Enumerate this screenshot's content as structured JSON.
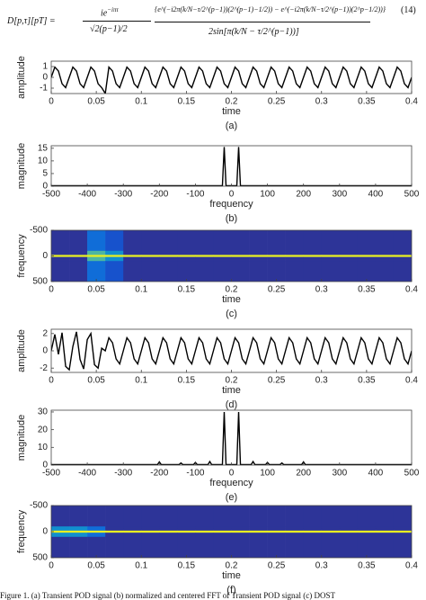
{
  "equation": {
    "lhs": "D[p,τ][pT] =",
    "num1": "ie",
    "num1_sup": "−iπτ",
    "den1": "√2(p−1)/2",
    "num2": "{e^(−i2π(k/N−τ/2^(p−1))(2^(p−1)−1/2)) − e^(−i2π(k/N−τ/2^(p−1))(2^p−1/2))}",
    "den2": "2sin[π(k/N − τ/2^(p−1))]",
    "number": "(14)"
  },
  "caption": "Figure 1. (a) Transient POD signal (b) normalized and centered FFT of Transient POD signal (c) DOST",
  "chart_data": [
    {
      "type": "line",
      "label": "(a)",
      "xlabel": "time",
      "ylabel": "amplitude",
      "color": "#000000",
      "x": [
        0,
        0.004,
        0.008,
        0.012,
        0.016,
        0.02,
        0.024,
        0.028,
        0.032,
        0.036,
        0.04,
        0.044,
        0.048,
        0.052,
        0.056,
        0.06,
        0.064,
        0.068,
        0.072,
        0.076,
        0.08,
        0.084,
        0.088,
        0.092,
        0.096,
        0.1,
        0.104,
        0.108,
        0.112,
        0.116,
        0.12,
        0.124,
        0.128,
        0.132,
        0.136,
        0.14,
        0.144,
        0.148,
        0.152,
        0.156,
        0.16,
        0.164,
        0.168,
        0.172,
        0.176,
        0.18,
        0.184,
        0.188,
        0.192,
        0.196,
        0.2,
        0.204,
        0.208,
        0.212,
        0.216,
        0.22,
        0.224,
        0.228,
        0.232,
        0.236,
        0.24,
        0.244,
        0.248,
        0.252,
        0.256,
        0.26,
        0.264,
        0.268,
        0.272,
        0.276,
        0.28,
        0.284,
        0.288,
        0.292,
        0.296,
        0.3,
        0.304,
        0.308,
        0.312,
        0.316,
        0.32,
        0.324,
        0.328,
        0.332,
        0.336,
        0.34,
        0.344,
        0.348,
        0.352,
        0.356,
        0.36,
        0.364,
        0.368,
        0.372,
        0.376,
        0.38,
        0.384,
        0.388,
        0.392,
        0.396,
        0.4
      ],
      "values": [
        0,
        0.95,
        0.59,
        -0.59,
        -0.95,
        0,
        0.95,
        0.59,
        -0.59,
        -0.95,
        0,
        0.95,
        0.59,
        -0.59,
        -0.95,
        -1.5,
        0.95,
        0.59,
        -0.59,
        -0.95,
        0,
        0.95,
        0.59,
        -0.59,
        -0.95,
        0,
        0.95,
        0.59,
        -0.59,
        -0.95,
        0,
        0.95,
        0.59,
        -0.59,
        -0.95,
        0,
        0.95,
        0.59,
        -0.59,
        -0.95,
        0,
        0.95,
        0.59,
        -0.59,
        -0.95,
        0,
        0.95,
        0.59,
        -0.59,
        -0.95,
        0,
        0.95,
        0.59,
        -0.59,
        -0.95,
        0,
        0.95,
        0.59,
        -0.59,
        -0.95,
        0,
        0.95,
        0.59,
        -0.59,
        -0.95,
        0,
        0.95,
        0.59,
        -0.59,
        -0.95,
        0,
        0.95,
        0.59,
        -0.59,
        -0.95,
        0,
        0.95,
        0.59,
        -0.59,
        -0.95,
        0,
        0.95,
        0.59,
        -0.59,
        -0.95,
        0,
        0.95,
        0.59,
        -0.59,
        -0.95,
        0,
        0.95,
        0.59,
        -0.59,
        -0.95,
        0,
        0.95,
        0.59,
        -0.59,
        -0.95,
        0
      ],
      "xlim": [
        0,
        0.4
      ],
      "xticks": [
        0,
        0.05,
        0.1,
        0.15,
        0.2,
        0.25,
        0.3,
        0.35,
        0.4
      ],
      "ylim": [
        -1.5,
        1.5
      ],
      "yticks": [
        -1,
        0,
        1
      ]
    },
    {
      "type": "line",
      "label": "(b)",
      "xlabel": "frequency",
      "ylabel": "magnitude",
      "color": "#000000",
      "x": [
        -500,
        -25,
        -20,
        -15,
        15,
        20,
        25,
        500
      ],
      "values": [
        0.2,
        0.2,
        15.5,
        0.2,
        0.2,
        15.5,
        0.2,
        0.2
      ],
      "xlim": [
        -500,
        500
      ],
      "xticks": [
        -500,
        -400,
        -300,
        -200,
        -100,
        0,
        100,
        200,
        300,
        400,
        500
      ],
      "ylim": [
        0,
        16
      ],
      "yticks": [
        0,
        5,
        10,
        15
      ]
    },
    {
      "type": "heatmap",
      "label": "(c)",
      "xlabel": "time",
      "ylabel": "frequency",
      "colormap": "parula",
      "yreverse": true,
      "xbins": [
        0,
        0.02,
        0.04,
        0.06,
        0.08,
        0.1,
        0.12,
        0.14,
        0.16,
        0.18,
        0.2,
        0.22,
        0.24,
        0.26,
        0.28,
        0.3,
        0.32,
        0.34,
        0.36,
        0.38,
        0.4
      ],
      "ybins": [
        -500,
        -100,
        -20,
        20,
        100,
        500
      ],
      "z": [
        [
          0.05,
          0.05,
          0.3,
          0.2,
          0.05,
          0.05,
          0.05,
          0.05,
          0.05,
          0.05,
          0.05,
          0.05,
          0.05,
          0.05,
          0.05,
          0.05,
          0.05,
          0.05,
          0.05,
          0.05
        ],
        [
          0.05,
          0.05,
          0.6,
          0.4,
          0.05,
          0.05,
          0.05,
          0.05,
          0.05,
          0.05,
          0.05,
          0.05,
          0.05,
          0.05,
          0.05,
          0.05,
          0.05,
          0.05,
          0.05,
          0.05
        ],
        [
          0.95,
          0.95,
          0.95,
          0.95,
          0.95,
          0.95,
          0.95,
          0.95,
          0.95,
          0.95,
          0.95,
          0.95,
          0.95,
          0.95,
          0.95,
          0.95,
          0.95,
          0.95,
          0.95,
          0.95
        ],
        [
          0.05,
          0.05,
          0.6,
          0.4,
          0.05,
          0.05,
          0.05,
          0.05,
          0.05,
          0.05,
          0.05,
          0.05,
          0.05,
          0.05,
          0.05,
          0.05,
          0.05,
          0.05,
          0.05,
          0.05
        ],
        [
          0.05,
          0.05,
          0.3,
          0.2,
          0.05,
          0.05,
          0.05,
          0.05,
          0.05,
          0.05,
          0.05,
          0.05,
          0.05,
          0.05,
          0.05,
          0.05,
          0.05,
          0.05,
          0.05,
          0.05
        ]
      ],
      "zlim": [
        0,
        1
      ],
      "xlim": [
        0,
        0.4
      ],
      "xticks": [
        0,
        0.05,
        0.1,
        0.15,
        0.2,
        0.25,
        0.3,
        0.35,
        0.4
      ],
      "ylim": [
        -500,
        500
      ],
      "yticks": [
        -500,
        0,
        500
      ]
    },
    {
      "type": "line",
      "label": "(d)",
      "xlabel": "time",
      "ylabel": "amplitude",
      "color": "#000000",
      "x": [
        0,
        0.004,
        0.008,
        0.012,
        0.016,
        0.02,
        0.024,
        0.028,
        0.032,
        0.036,
        0.04,
        0.044,
        0.048,
        0.052,
        0.056,
        0.06,
        0.064,
        0.068,
        0.072,
        0.076,
        0.08,
        0.084,
        0.088,
        0.092,
        0.096,
        0.1,
        0.104,
        0.108,
        0.112,
        0.116,
        0.12,
        0.124,
        0.128,
        0.132,
        0.136,
        0.14,
        0.144,
        0.148,
        0.152,
        0.156,
        0.16,
        0.164,
        0.168,
        0.172,
        0.176,
        0.18,
        0.184,
        0.188,
        0.192,
        0.196,
        0.2,
        0.204,
        0.208,
        0.212,
        0.216,
        0.22,
        0.224,
        0.228,
        0.232,
        0.236,
        0.24,
        0.244,
        0.248,
        0.252,
        0.256,
        0.26,
        0.264,
        0.268,
        0.272,
        0.276,
        0.28,
        0.284,
        0.288,
        0.292,
        0.296,
        0.3,
        0.304,
        0.308,
        0.312,
        0.316,
        0.32,
        0.324,
        0.328,
        0.332,
        0.336,
        0.34,
        0.344,
        0.348,
        0.352,
        0.356,
        0.36,
        0.364,
        0.368,
        0.372,
        0.376,
        0.38,
        0.384,
        0.388,
        0.392,
        0.396,
        0.4
      ],
      "values": [
        0,
        1.9,
        -0.4,
        2.1,
        -1.8,
        -2.2,
        0.5,
        2.2,
        -1.0,
        -2.1,
        1.3,
        2.0,
        -1.6,
        -2.0,
        0.3,
        0,
        1.52,
        0.94,
        -0.94,
        -1.52,
        0,
        1.52,
        0.94,
        -0.94,
        -1.52,
        0,
        1.52,
        0.94,
        -0.94,
        -1.52,
        0,
        1.52,
        0.94,
        -0.94,
        -1.52,
        0,
        1.52,
        0.94,
        -0.94,
        -1.52,
        0,
        1.52,
        0.94,
        -0.94,
        -1.52,
        0,
        1.52,
        0.94,
        -0.94,
        -1.52,
        0,
        1.52,
        0.94,
        -0.94,
        -1.52,
        0,
        1.52,
        0.94,
        -0.94,
        -1.52,
        0,
        1.52,
        0.94,
        -0.94,
        -1.52,
        0,
        1.52,
        0.94,
        -0.94,
        -1.52,
        0,
        1.52,
        0.94,
        -0.94,
        -1.52,
        0,
        1.52,
        0.94,
        -0.94,
        -1.52,
        0,
        1.52,
        0.94,
        -0.94,
        -1.52,
        0,
        1.52,
        0.94,
        -0.94,
        -1.52,
        0,
        1.52,
        0.94,
        -0.94,
        -1.52,
        0,
        1.52,
        0.94,
        -0.94,
        -1.52,
        0
      ],
      "xlim": [
        0,
        0.4
      ],
      "xticks": [
        0,
        0.05,
        0.1,
        0.15,
        0.2,
        0.25,
        0.3,
        0.35,
        0.4
      ],
      "ylim": [
        -2.5,
        2.5
      ],
      "yticks": [
        -2,
        0,
        2
      ]
    },
    {
      "type": "line",
      "label": "(e)",
      "xlabel": "frequency",
      "ylabel": "magnitude",
      "color": "#000000",
      "x": [
        -500,
        -205,
        -200,
        -195,
        -145,
        -140,
        -135,
        -105,
        -100,
        -95,
        -65,
        -60,
        -55,
        -25,
        -20,
        -15,
        15,
        20,
        25,
        55,
        60,
        65,
        95,
        100,
        105,
        135,
        140,
        145,
        195,
        200,
        205,
        500
      ],
      "values": [
        0.3,
        0.3,
        1.8,
        0.3,
        0.3,
        1.2,
        0.3,
        0.3,
        1.5,
        0.3,
        0.3,
        2,
        0.3,
        0.3,
        30,
        0.3,
        0.3,
        30,
        0.3,
        0.3,
        2,
        0.3,
        0.3,
        1.5,
        0.3,
        0.3,
        1.2,
        0.3,
        0.3,
        1.8,
        0.3,
        0.3
      ],
      "xlim": [
        -500,
        500
      ],
      "xticks": [
        -500,
        -400,
        -300,
        -200,
        -100,
        0,
        100,
        200,
        300,
        400,
        500
      ],
      "ylim": [
        0,
        31
      ],
      "yticks": [
        0,
        10,
        20,
        30
      ]
    },
    {
      "type": "heatmap",
      "label": "(f)",
      "xlabel": "time",
      "ylabel": "frequency",
      "colormap": "parula",
      "yreverse": true,
      "xbins": [
        0,
        0.02,
        0.04,
        0.06,
        0.08,
        0.1,
        0.12,
        0.14,
        0.16,
        0.18,
        0.2,
        0.22,
        0.24,
        0.26,
        0.28,
        0.3,
        0.32,
        0.34,
        0.36,
        0.38,
        0.4
      ],
      "ybins": [
        -500,
        -100,
        -20,
        20,
        100,
        500
      ],
      "z": [
        [
          0.05,
          0.05,
          0.05,
          0.05,
          0.05,
          0.05,
          0.05,
          0.05,
          0.05,
          0.05,
          0.05,
          0.05,
          0.05,
          0.05,
          0.05,
          0.05,
          0.05,
          0.05,
          0.05,
          0.05
        ],
        [
          0.4,
          0.4,
          0.3,
          0.05,
          0.05,
          0.05,
          0.05,
          0.05,
          0.05,
          0.05,
          0.05,
          0.05,
          0.05,
          0.05,
          0.05,
          0.05,
          0.05,
          0.05,
          0.05,
          0.05
        ],
        [
          0.95,
          0.95,
          0.95,
          0.95,
          0.95,
          0.95,
          0.95,
          0.95,
          0.95,
          0.95,
          0.95,
          0.95,
          0.95,
          0.95,
          0.95,
          0.95,
          0.95,
          0.95,
          0.95,
          0.95
        ],
        [
          0.4,
          0.4,
          0.3,
          0.05,
          0.05,
          0.05,
          0.05,
          0.05,
          0.05,
          0.05,
          0.05,
          0.05,
          0.05,
          0.05,
          0.05,
          0.05,
          0.05,
          0.05,
          0.05,
          0.05
        ],
        [
          0.05,
          0.05,
          0.05,
          0.05,
          0.05,
          0.05,
          0.05,
          0.05,
          0.05,
          0.05,
          0.05,
          0.05,
          0.05,
          0.05,
          0.05,
          0.05,
          0.05,
          0.05,
          0.05,
          0.05
        ]
      ],
      "zlim": [
        0,
        1
      ],
      "xlim": [
        0,
        0.4
      ],
      "xticks": [
        0,
        0.05,
        0.1,
        0.15,
        0.2,
        0.25,
        0.3,
        0.35,
        0.4
      ],
      "ylim": [
        -500,
        500
      ],
      "yticks": [
        -500,
        0,
        500
      ]
    }
  ]
}
